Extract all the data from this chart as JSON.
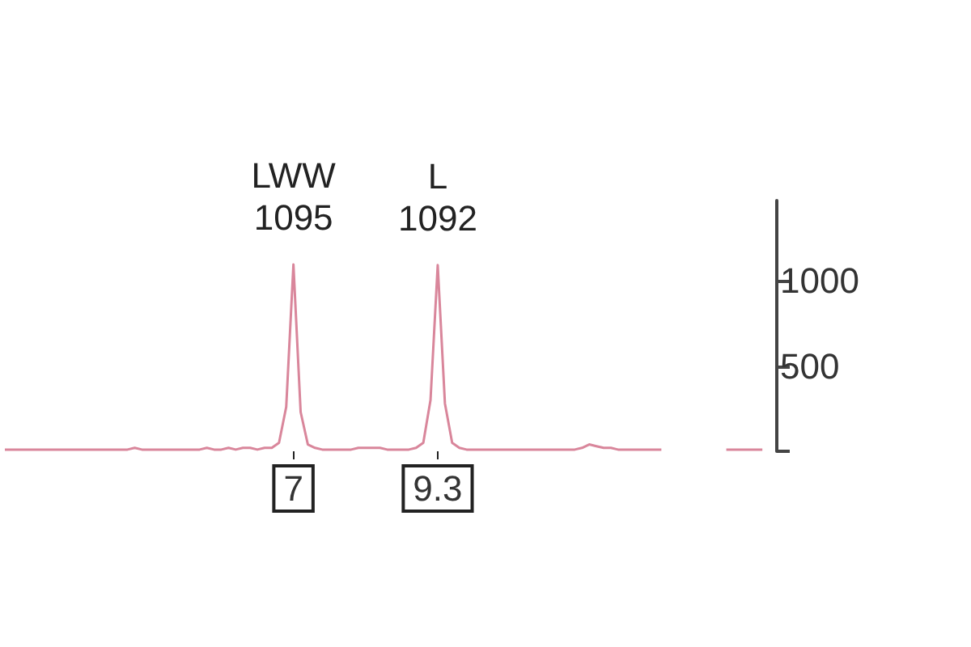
{
  "chart_data": {
    "type": "line",
    "categories": [
      null,
      null,
      null,
      null,
      null,
      null,
      null,
      null,
      null,
      null,
      null,
      null,
      null,
      null,
      null,
      null,
      null,
      null,
      null,
      null,
      null,
      null,
      null,
      null,
      null,
      null,
      null,
      null,
      null,
      null,
      null,
      null,
      null,
      null,
      null,
      null,
      null,
      null,
      null,
      null,
      "7",
      null,
      null,
      null,
      null,
      null,
      null,
      null,
      null,
      null,
      null,
      null,
      null,
      null,
      null,
      null,
      null,
      null,
      null,
      null,
      "9.3",
      null,
      null,
      null,
      null,
      null,
      null,
      null,
      null,
      null,
      null,
      null,
      null,
      null,
      null,
      null,
      null,
      null,
      null,
      null,
      null,
      null,
      null,
      null,
      null,
      null,
      null,
      null,
      null,
      null,
      null,
      null,
      null,
      null,
      null,
      null,
      null,
      null,
      null,
      null,
      null,
      null,
      null,
      null,
      null,
      null,
      null,
      null
    ],
    "series": [
      {
        "color": "#d9869b",
        "values": [
          10,
          10,
          10,
          10,
          10,
          10,
          10,
          10,
          10,
          10,
          10,
          10,
          10,
          10,
          10,
          10,
          10,
          10,
          20,
          10,
          10,
          10,
          10,
          10,
          10,
          10,
          10,
          10,
          20,
          10,
          10,
          20,
          10,
          20,
          20,
          10,
          20,
          20,
          50,
          260,
          1095,
          230,
          40,
          20,
          10,
          10,
          10,
          10,
          10,
          20,
          20,
          20,
          20,
          10,
          10,
          10,
          10,
          20,
          50,
          300,
          1092,
          280,
          50,
          20,
          10,
          10,
          10,
          10,
          10,
          10,
          10,
          10,
          10,
          10,
          10,
          10,
          10,
          10,
          10,
          10,
          20,
          40,
          30,
          20,
          20,
          10,
          10,
          10,
          10,
          10,
          10,
          10,
          null,
          null,
          null,
          null,
          null,
          null,
          null,
          null,
          10,
          10,
          10,
          10,
          10,
          10,
          null,
          null
        ],
        "value_labels": [
          null,
          null,
          null,
          null,
          null,
          null,
          null,
          null,
          null,
          null,
          null,
          null,
          null,
          null,
          null,
          null,
          null,
          null,
          null,
          null,
          null,
          null,
          null,
          null,
          null,
          null,
          null,
          null,
          null,
          null,
          null,
          null,
          null,
          null,
          null,
          null,
          null,
          null,
          null,
          null,
          "1095",
          null,
          null,
          null,
          null,
          null,
          null,
          null,
          null,
          null,
          null,
          null,
          null,
          null,
          null,
          null,
          null,
          null,
          null,
          null,
          "1092",
          null,
          null,
          null,
          null,
          null,
          null,
          null,
          null,
          null,
          null,
          null,
          null,
          null,
          null,
          null,
          null,
          null,
          null,
          null,
          null,
          null,
          null,
          null,
          null,
          null,
          null,
          null,
          null,
          null,
          null,
          null,
          null,
          null,
          null,
          null,
          null,
          null,
          null,
          null,
          null,
          null,
          null,
          null,
          null,
          null,
          null,
          null
        ]
      }
    ],
    "annotations": [
      "LWW",
      "L"
    ],
    "ylim": [
      0,
      1470
    ],
    "yticks": [
      {
        "value": 0,
        "label": null
      },
      500,
      1000
    ],
    "grid": false,
    "marker": "none",
    "line_style": "solid"
  }
}
